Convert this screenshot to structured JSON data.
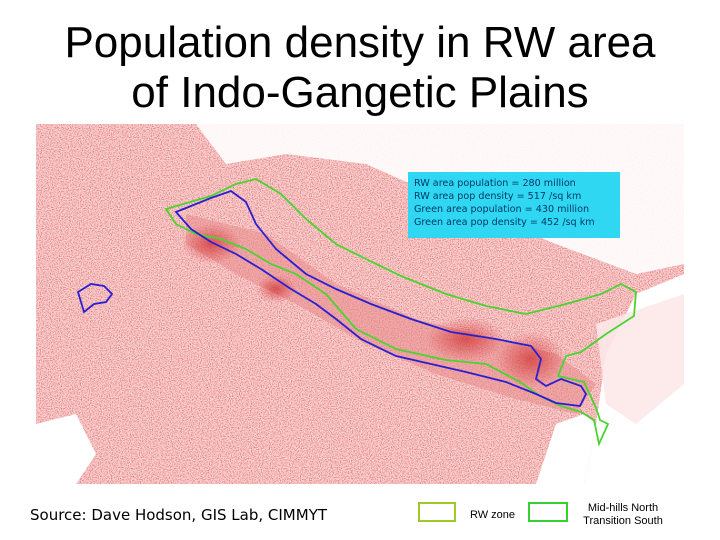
{
  "title_line1": "Population density in RW area",
  "title_line2": "of Indo-Gangetic Plains",
  "info": [
    "RW area population = 280 million",
    "RW area pop density = 517 /sq km",
    "Green area population = 430 million",
    "Green area pop density = 452 /sq km"
  ],
  "source": "Source: Dave Hodson, GIS Lab, CIMMYT",
  "legend": {
    "rw_label": "RW zone",
    "mh_label_1": "Mid-hills North",
    "mh_label_2": "Transition South",
    "rw_color": "#9ecb2a",
    "mh_color": "#36d233"
  },
  "colors": {
    "density_low": "#f6c9c9",
    "density_high": "#c81010",
    "rw_boundary": "#2a1fd1",
    "green_boundary": "#49d42f"
  }
}
